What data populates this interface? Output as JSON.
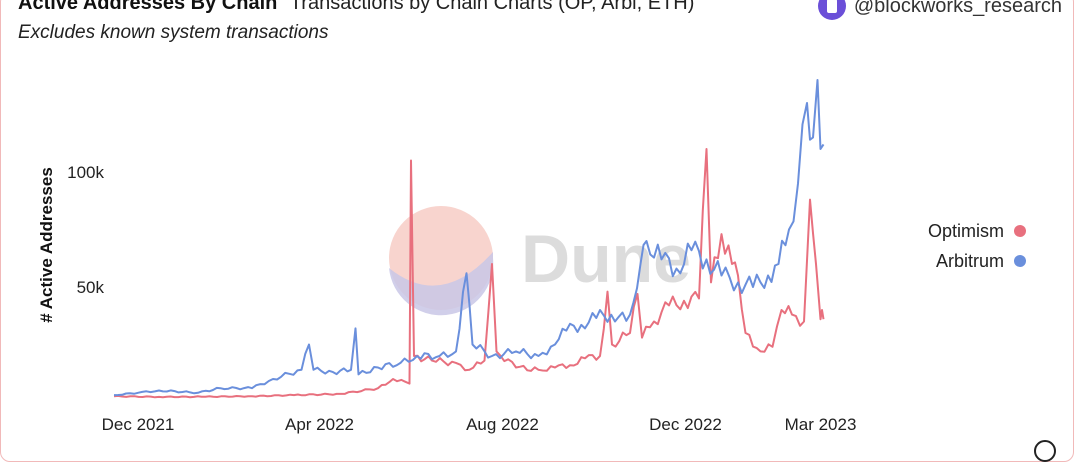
{
  "header": {
    "title": "Active Addresses By Chain",
    "subtitle": "Transactions by Chain Charts (OP, Arbi, ETH)",
    "caption": "Excludes known system transactions",
    "author": "@blockworks_research"
  },
  "watermark": {
    "text": "Dune"
  },
  "colors": {
    "optimism": "#e8707e",
    "arbitrum": "#6a8fdc",
    "border": "#f1b9b9"
  },
  "chart_data": {
    "type": "line",
    "title": "Active Addresses By Chain",
    "xlabel": "",
    "ylabel": "# Active Addresses",
    "ylim": [
      0,
      140000
    ],
    "xlim": [
      "2021-11-15",
      "2023-03-14"
    ],
    "yticks": [
      {
        "value": 50000,
        "label": "50k"
      },
      {
        "value": 100000,
        "label": "100k"
      }
    ],
    "xticks": [
      {
        "date": "2021-12-01",
        "label": "Dec 2021"
      },
      {
        "date": "2022-04-01",
        "label": "Apr 2022"
      },
      {
        "date": "2022-08-01",
        "label": "Aug 2022"
      },
      {
        "date": "2022-12-01",
        "label": "Dec 2022"
      },
      {
        "date": "2023-03-01",
        "label": "Mar 2023"
      }
    ],
    "legend_position": "right",
    "grid": false,
    "series": [
      {
        "name": "Optimism",
        "color": "#e8707e",
        "points": [
          [
            "2021-11-15",
            2500
          ],
          [
            "2021-12-15",
            2200
          ],
          [
            "2022-01-15",
            2300
          ],
          [
            "2022-02-15",
            2500
          ],
          [
            "2022-03-15",
            3000
          ],
          [
            "2022-04-15",
            3500
          ],
          [
            "2022-05-10",
            6000
          ],
          [
            "2022-05-20",
            10000
          ],
          [
            "2022-05-31",
            8000
          ],
          [
            "2022-06-01",
            105000
          ],
          [
            "2022-06-03",
            20000
          ],
          [
            "2022-06-15",
            18000
          ],
          [
            "2022-07-01",
            17000
          ],
          [
            "2022-07-10",
            14000
          ],
          [
            "2022-07-20",
            18000
          ],
          [
            "2022-07-25",
            60000
          ],
          [
            "2022-07-28",
            22000
          ],
          [
            "2022-08-10",
            15000
          ],
          [
            "2022-08-25",
            14000
          ],
          [
            "2022-09-05",
            15000
          ],
          [
            "2022-09-15",
            16000
          ],
          [
            "2022-09-25",
            19000
          ],
          [
            "2022-10-05",
            20000
          ],
          [
            "2022-10-10",
            48000
          ],
          [
            "2022-10-13",
            25000
          ],
          [
            "2022-10-25",
            30000
          ],
          [
            "2022-10-30",
            47000
          ],
          [
            "2022-11-02",
            28000
          ],
          [
            "2022-11-10",
            35000
          ],
          [
            "2022-11-20",
            42000
          ],
          [
            "2022-11-30",
            44000
          ],
          [
            "2022-12-10",
            45000
          ],
          [
            "2022-12-15",
            110000
          ],
          [
            "2022-12-18",
            52000
          ],
          [
            "2022-12-25",
            73000
          ],
          [
            "2023-01-01",
            60000
          ],
          [
            "2023-01-05",
            55000
          ],
          [
            "2023-01-10",
            30000
          ],
          [
            "2023-01-20",
            22000
          ],
          [
            "2023-01-28",
            24000
          ],
          [
            "2023-02-03",
            40000
          ],
          [
            "2023-02-10",
            38000
          ],
          [
            "2023-02-18",
            35000
          ],
          [
            "2023-02-22",
            88000
          ],
          [
            "2023-02-26",
            60000
          ],
          [
            "2023-03-01",
            36000
          ],
          [
            "2023-03-02",
            40000
          ],
          [
            "2023-03-03",
            36000
          ]
        ]
      },
      {
        "name": "Arbitrum",
        "color": "#6a8fdc",
        "points": [
          [
            "2021-11-15",
            3000
          ],
          [
            "2021-12-01",
            4000
          ],
          [
            "2021-12-15",
            5000
          ],
          [
            "2022-01-10",
            4000
          ],
          [
            "2022-01-25",
            6000
          ],
          [
            "2022-02-15",
            6000
          ],
          [
            "2022-03-01",
            10000
          ],
          [
            "2022-03-20",
            14000
          ],
          [
            "2022-03-25",
            25000
          ],
          [
            "2022-03-28",
            14000
          ],
          [
            "2022-04-10",
            13000
          ],
          [
            "2022-04-22",
            14000
          ],
          [
            "2022-04-25",
            32000
          ],
          [
            "2022-04-27",
            12000
          ],
          [
            "2022-05-10",
            15000
          ],
          [
            "2022-05-25",
            17000
          ],
          [
            "2022-06-05",
            20000
          ],
          [
            "2022-06-20",
            20000
          ],
          [
            "2022-07-01",
            22000
          ],
          [
            "2022-07-08",
            56000
          ],
          [
            "2022-07-12",
            25000
          ],
          [
            "2022-07-25",
            20000
          ],
          [
            "2022-08-10",
            22000
          ],
          [
            "2022-08-25",
            20000
          ],
          [
            "2022-09-05",
            25000
          ],
          [
            "2022-09-15",
            34000
          ],
          [
            "2022-09-25",
            32000
          ],
          [
            "2022-10-05",
            40000
          ],
          [
            "2022-10-15",
            35000
          ],
          [
            "2022-10-25",
            38000
          ],
          [
            "2022-11-01",
            60000
          ],
          [
            "2022-11-05",
            70000
          ],
          [
            "2022-11-15",
            62000
          ],
          [
            "2022-11-25",
            58000
          ],
          [
            "2022-12-05",
            66000
          ],
          [
            "2022-12-15",
            62000
          ],
          [
            "2022-12-25",
            55000
          ],
          [
            "2023-01-05",
            52000
          ],
          [
            "2023-01-15",
            50000
          ],
          [
            "2023-01-25",
            55000
          ],
          [
            "2023-02-01",
            60000
          ],
          [
            "2023-02-08",
            75000
          ],
          [
            "2023-02-14",
            95000
          ],
          [
            "2023-02-20",
            130000
          ],
          [
            "2023-02-24",
            115000
          ],
          [
            "2023-02-27",
            140000
          ],
          [
            "2023-03-01",
            110000
          ],
          [
            "2023-03-03",
            112000
          ]
        ]
      }
    ]
  }
}
